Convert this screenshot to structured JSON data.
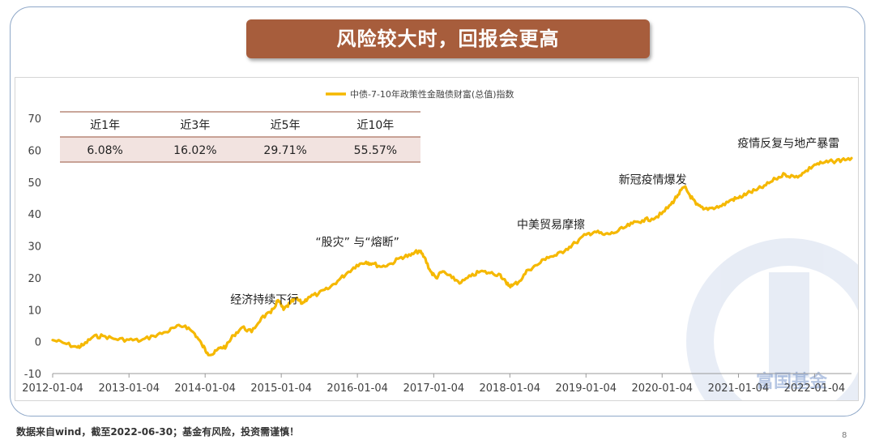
{
  "banner": {
    "title": "风险较大时，回报会更高"
  },
  "footnote": "数据来自wind，截至2022-06-30；基金有风险，投资需谨慎！",
  "page_number": "8",
  "watermark": {
    "text": "富国基金",
    "color": "#6f8fc8"
  },
  "returns_table": {
    "headers": [
      "近1年",
      "近3年",
      "近5年",
      "近10年"
    ],
    "values": [
      "6.08%",
      "16.02%",
      "29.71%",
      "55.57%"
    ],
    "header_border_color": "#b88878",
    "value_bg_color": "#f2e3e0"
  },
  "chart_data": {
    "type": "line",
    "legend_position": "top-center",
    "series": [
      {
        "name": "中债-7-10年政策性金融债财富(总值)指数",
        "color": "#f5b800",
        "points": [
          [
            "2012-01-04",
            0.5
          ],
          [
            "2012-03-01",
            -0.5
          ],
          [
            "2012-05-01",
            -1.8
          ],
          [
            "2012-06-01",
            -1.0
          ],
          [
            "2012-07-15",
            1.5
          ],
          [
            "2012-09-01",
            1.8
          ],
          [
            "2012-11-01",
            0.8
          ],
          [
            "2013-01-04",
            0.6
          ],
          [
            "2013-03-01",
            0.3
          ],
          [
            "2013-05-01",
            1.8
          ],
          [
            "2013-07-01",
            3.0
          ],
          [
            "2013-08-15",
            4.5
          ],
          [
            "2013-10-01",
            5.0
          ],
          [
            "2013-11-15",
            2.5
          ],
          [
            "2013-12-20",
            -1.0
          ],
          [
            "2014-01-15",
            -3.5
          ],
          [
            "2014-02-10",
            -4.0
          ],
          [
            "2014-03-15",
            -2.0
          ],
          [
            "2014-04-15",
            -1.5
          ],
          [
            "2014-05-20",
            2.0
          ],
          [
            "2014-07-01",
            4.5
          ],
          [
            "2014-08-15",
            3.0
          ],
          [
            "2014-10-01",
            7.5
          ],
          [
            "2014-11-15",
            9.0
          ],
          [
            "2014-12-20",
            13.0
          ],
          [
            "2015-01-15",
            10.0
          ],
          [
            "2015-02-15",
            12.0
          ],
          [
            "2015-03-15",
            13.5
          ],
          [
            "2015-04-15",
            12.0
          ],
          [
            "2015-05-15",
            14.0
          ],
          [
            "2015-07-01",
            15.0
          ],
          [
            "2015-08-15",
            16.5
          ],
          [
            "2015-10-01",
            19.0
          ],
          [
            "2015-11-15",
            21.5
          ],
          [
            "2016-01-01",
            24.0
          ],
          [
            "2016-02-15",
            25.0
          ],
          [
            "2016-03-15",
            24.5
          ],
          [
            "2016-05-01",
            23.5
          ],
          [
            "2016-06-15",
            24.5
          ],
          [
            "2016-08-01",
            26.5
          ],
          [
            "2016-09-15",
            27.0
          ],
          [
            "2016-10-25",
            28.5
          ],
          [
            "2016-11-20",
            26.5
          ],
          [
            "2016-12-20",
            22.0
          ],
          [
            "2017-01-15",
            20.0
          ],
          [
            "2017-02-15",
            22.0
          ],
          [
            "2017-04-01",
            20.0
          ],
          [
            "2017-05-15",
            18.5
          ],
          [
            "2017-07-01",
            20.5
          ],
          [
            "2017-08-15",
            22.0
          ],
          [
            "2017-10-01",
            21.5
          ],
          [
            "2017-11-20",
            21.0
          ],
          [
            "2017-12-20",
            18.0
          ],
          [
            "2018-01-15",
            17.5
          ],
          [
            "2018-02-20",
            19.0
          ],
          [
            "2018-04-01",
            22.5
          ],
          [
            "2018-05-15",
            24.0
          ],
          [
            "2018-07-01",
            26.5
          ],
          [
            "2018-08-15",
            27.0
          ],
          [
            "2018-10-01",
            29.0
          ],
          [
            "2018-11-15",
            31.0
          ],
          [
            "2019-01-04",
            33.5
          ],
          [
            "2019-02-15",
            34.5
          ],
          [
            "2019-04-01",
            33.5
          ],
          [
            "2019-05-15",
            34.0
          ],
          [
            "2019-07-01",
            35.5
          ],
          [
            "2019-08-15",
            37.0
          ],
          [
            "2019-10-01",
            38.0
          ],
          [
            "2019-11-15",
            38.5
          ],
          [
            "2020-01-01",
            40.0
          ],
          [
            "2020-02-15",
            43.0
          ],
          [
            "2020-03-20",
            46.0
          ],
          [
            "2020-04-20",
            48.5
          ],
          [
            "2020-05-15",
            46.0
          ],
          [
            "2020-06-15",
            43.0
          ],
          [
            "2020-07-20",
            41.5
          ],
          [
            "2020-09-01",
            42.0
          ],
          [
            "2020-10-15",
            42.5
          ],
          [
            "2020-12-01",
            44.5
          ],
          [
            "2021-01-04",
            45.0
          ],
          [
            "2021-02-15",
            46.5
          ],
          [
            "2021-04-01",
            47.5
          ],
          [
            "2021-05-15",
            49.0
          ],
          [
            "2021-07-01",
            51.0
          ],
          [
            "2021-08-15",
            52.5
          ],
          [
            "2021-10-01",
            51.5
          ],
          [
            "2021-11-15",
            53.0
          ],
          [
            "2022-01-04",
            55.5
          ],
          [
            "2022-02-15",
            56.0
          ],
          [
            "2022-04-01",
            56.5
          ],
          [
            "2022-05-15",
            57.0
          ],
          [
            "2022-06-30",
            57.5
          ]
        ]
      }
    ],
    "y_range": [
      -10,
      70
    ],
    "y_ticks": [
      -10,
      0,
      10,
      20,
      30,
      40,
      50,
      60,
      70
    ],
    "x_range": [
      "2012-01-04",
      "2022-06-30"
    ],
    "x_ticks": [
      "2012-01-04",
      "2013-01-04",
      "2014-01-04",
      "2015-01-04",
      "2016-01-04",
      "2017-01-04",
      "2018-01-04",
      "2019-01-04",
      "2020-01-04",
      "2021-01-04",
      "2022-01-04"
    ],
    "grid": false,
    "annotations": [
      {
        "text": "经济持续下行",
        "x": "2014-10-15",
        "y": 12.0
      },
      {
        "text": "“股灾”  与“熔断”",
        "x": "2016-01-04",
        "y": 30.0
      },
      {
        "text": "中美贸易摩擦",
        "x": "2018-07-20",
        "y": 35.5
      },
      {
        "text": "新冠疫情爆发",
        "x": "2019-11-20",
        "y": 49.5
      },
      {
        "text": "疫情反复与地产暴雷",
        "x": "2021-09-01",
        "y": 61.0
      }
    ]
  }
}
